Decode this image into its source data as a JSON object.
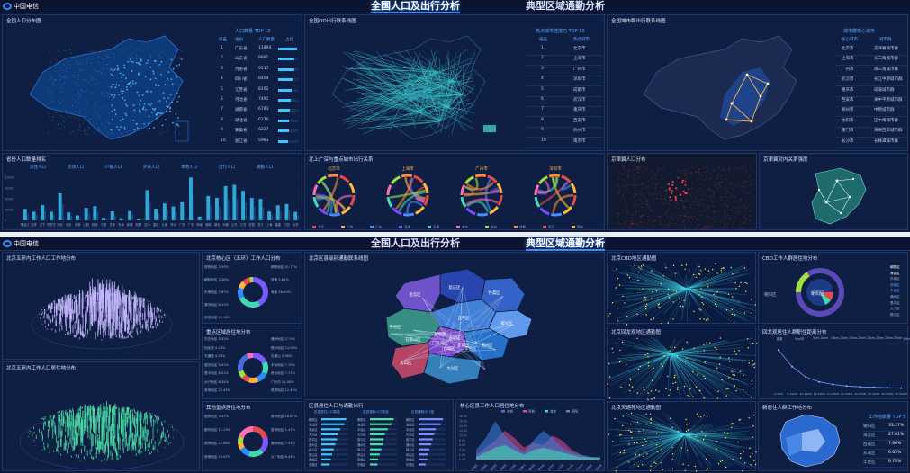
{
  "brand": {
    "logo_text": "中国电信"
  },
  "tabs": [
    {
      "label": "全国人口及出行分析",
      "active": true
    },
    {
      "label": "典型区域通勤分析",
      "active": false
    }
  ],
  "screen1": {
    "population_map": {
      "title": "全国人口分布图",
      "table_title": "人口数量 TOP 10",
      "headers": [
        "排名",
        "省份",
        "人口数量",
        "占比"
      ],
      "rows": [
        {
          "rank": "1",
          "name": "广东省",
          "value": "11894",
          "pct": 0.95
        },
        {
          "rank": "2",
          "name": "山东省",
          "value": "9881",
          "pct": 0.82
        },
        {
          "rank": "3",
          "name": "河南省",
          "value": "9517",
          "pct": 0.8
        },
        {
          "rank": "4",
          "name": "四川省",
          "value": "8404",
          "pct": 0.72
        },
        {
          "rank": "5",
          "name": "江苏省",
          "value": "8192",
          "pct": 0.7
        },
        {
          "rank": "6",
          "name": "河北省",
          "value": "7491",
          "pct": 0.64
        },
        {
          "rank": "7",
          "name": "湖南省",
          "value": "6783",
          "pct": 0.58
        },
        {
          "rank": "8",
          "name": "湖北省",
          "value": "6270",
          "pct": 0.54
        },
        {
          "rank": "9",
          "name": "安徽省",
          "value": "6227",
          "pct": 0.53
        },
        {
          "rank": "10",
          "name": "浙江省",
          "value": "5983",
          "pct": 0.51
        }
      ]
    },
    "od_map": {
      "title": "全国OD出行联系线图",
      "table_title": "热点城市连接力 TOP 10",
      "headers": [
        "排名",
        "热点城市"
      ],
      "rows": [
        {
          "rank": "1",
          "name": "北京市"
        },
        {
          "rank": "2",
          "name": "上海市"
        },
        {
          "rank": "3",
          "name": "广州市"
        },
        {
          "rank": "4",
          "name": "深圳市"
        },
        {
          "rank": "5",
          "name": "成都市"
        },
        {
          "rank": "6",
          "name": "武汉市"
        },
        {
          "rank": "7",
          "name": "重庆市"
        },
        {
          "rank": "8",
          "name": "西安市"
        },
        {
          "rank": "9",
          "name": "杭州市"
        },
        {
          "rank": "10",
          "name": "南京市"
        }
      ]
    },
    "city_group_map": {
      "title": "全国城市群出行联系线图",
      "table_title": "城市群核心城市",
      "headers": [
        "核心城市",
        "城市群"
      ],
      "rows": [
        {
          "core": "北京市",
          "group": "京津冀城市群"
        },
        {
          "core": "上海市",
          "group": "长三角城市群"
        },
        {
          "core": "广州市",
          "group": "珠三角城市群"
        },
        {
          "core": "武汉市",
          "group": "长江中游城市群"
        },
        {
          "core": "重庆市",
          "group": "成渝城市群"
        },
        {
          "core": "西安市",
          "group": "关中平原城市群"
        },
        {
          "core": "郑州市",
          "group": "中原城市群"
        },
        {
          "core": "沈阳市",
          "group": "辽中南城市群"
        },
        {
          "core": "厦门市",
          "group": "海峡西岸城市群"
        },
        {
          "core": "长沙市",
          "group": "长株潭城市群"
        }
      ]
    },
    "province_rank": {
      "title": "省份人口数量排名",
      "legend": [
        "常住人口",
        "流动人口",
        "户籍人口",
        "外来人口",
        "本地人口",
        "出行人口",
        "通勤人口"
      ],
      "axis_ticks": [
        "12000",
        "9000",
        "6000",
        "3000",
        "0"
      ],
      "categories": [
        "黑龙江",
        "吉林",
        "辽宁",
        "内蒙古",
        "河北",
        "北京",
        "天津",
        "山西",
        "陕西",
        "宁夏",
        "甘肃",
        "青海",
        "新疆",
        "西藏",
        "四川",
        "重庆",
        "云南",
        "贵州",
        "广西",
        "广东",
        "海南",
        "湖南",
        "湖北",
        "河南",
        "山东",
        "江苏",
        "安徽",
        "浙江",
        "上海",
        "福建",
        "江西",
        "台湾"
      ],
      "values": [
        3185,
        2407,
        4229,
        2405,
        7491,
        2189,
        1386,
        3480,
        3954,
        725,
        2490,
        594,
        2589,
        366,
        8404,
        3213,
        4690,
        3858,
        5027,
        11894,
        1020,
        6783,
        6270,
        9517,
        9881,
        8192,
        6227,
        5983,
        2487,
        4187,
        4519,
        2360
      ]
    },
    "chord": {
      "title": "北上广深与重点城市出行关系",
      "cities": [
        "北京市",
        "上海市",
        "广州市",
        "深圳市"
      ],
      "legend": [
        "北京",
        "上海",
        "广州",
        "深圳",
        "天津",
        "重庆",
        "杭州",
        "成都",
        "武汉",
        "西安"
      ]
    },
    "jjj_population": {
      "title": "京津冀人口分布"
    },
    "jjj_relations": {
      "title": "京津冀对内关系强度"
    }
  },
  "screen2": {
    "work_3d": {
      "title": "北京五环内工作人口工作地分布"
    },
    "live_3d": {
      "title": "北京五环内工作人口居住地分布"
    },
    "core_donut": {
      "title": "北京核心区（五环）工作人口分布",
      "left_labels": [
        "双桥地区 2.59%",
        "朝阳地区 3.28%",
        "东坝地区 7.67%",
        "清河地区 8.11%",
        "其他地区 11.98%"
      ],
      "right_labels": [
        "朝阳地区 41.77%",
        "其他 2.88%",
        "海淀 26.00%"
      ]
    },
    "key_donut": {
      "title": "重点区域居住地分布",
      "left_labels": [
        "亦庄地区 3.52%",
        "回龙观 4.13%",
        "天通苑 4.58%",
        "望京地区 5.41%",
        "昌平地区 6.01%",
        "大兴地区 6.54%",
        "其他地区 22.42%"
      ],
      "right_labels": [
        "通州地区 17.9%",
        "顺义地区 14.04%",
        "石景山 5.98%",
        "丰台地区 7.70%",
        "房山地区 7.71%",
        "门头沟 11.08%",
        "燕郊地区 12.45%"
      ]
    },
    "other_donut": {
      "title": "其他重点居住地分布",
      "left_labels": [
        "固安地区 3.47%",
        "廊坊地区 11.19%",
        "燕郊地区 17.84%",
        "其他地区 19.67%"
      ],
      "right_labels": [
        "涿州地区 16.87%",
        "香河地区 1.47%",
        "霸州地区 7.31%",
        "大厂地区 8.43%"
      ]
    },
    "district_map": {
      "title": "北京区县级别通勤联系线图",
      "districts": [
        "延庆区",
        "怀柔区",
        "密云区",
        "昌平区",
        "顺义区",
        "平谷区",
        "门头沟区",
        "海淀区",
        "朝阳区",
        "石景山区",
        "西城区",
        "东城区",
        "丰台区",
        "通州区",
        "房山区",
        "大兴区"
      ]
    },
    "district_bars": {
      "title": "区县居住人口与通勤出行",
      "col_headers": [
        "区县居住人口数量",
        "区县通勤人口数量",
        "区县通勤出行量"
      ],
      "districts": [
        "朝阳区",
        "海淀区",
        "丰台区",
        "大兴区",
        "昌平区",
        "通州区",
        "顺义区",
        "房山区",
        "西城区",
        "东城区"
      ],
      "values_a": [
        0.92,
        0.85,
        0.7,
        0.6,
        0.58,
        0.52,
        0.46,
        0.4,
        0.35,
        0.3
      ],
      "values_b": [
        0.88,
        0.8,
        0.66,
        0.55,
        0.5,
        0.48,
        0.42,
        0.36,
        0.3,
        0.28
      ],
      "values_c": [
        0.9,
        0.82,
        0.64,
        0.58,
        0.52,
        0.47,
        0.4,
        0.34,
        0.32,
        0.26
      ]
    },
    "core_area": {
      "title": "核心区县工作人口居住地分布",
      "legend": [
        "东城",
        "西城",
        "海淀",
        "朝阳"
      ],
      "y_ticks": [
        "18.00",
        "16.00",
        "14.00",
        "12.00",
        "10.00",
        "8.00",
        "6.00",
        "4.00",
        "2.00",
        "0.00"
      ],
      "x_labels": [
        "东城区",
        "西城区",
        "朝阳区",
        "海淀区",
        "丰台区",
        "石景山",
        "通州区",
        "顺义区",
        "昌平区",
        "大兴区",
        "房山区",
        "门头沟",
        "怀柔区",
        "平谷区"
      ],
      "series_a": [
        4,
        9,
        16,
        10,
        6,
        3,
        8,
        12,
        9,
        5,
        3,
        2,
        1,
        1
      ],
      "series_b": [
        2,
        5,
        8,
        12,
        9,
        5,
        7,
        6,
        10,
        8,
        4,
        2,
        1,
        1
      ],
      "series_c": [
        1,
        3,
        5,
        6,
        4,
        2,
        4,
        5,
        4,
        3,
        2,
        1,
        1,
        0.5
      ]
    },
    "cbd_map": {
      "title": "北京CBD地区通勤图"
    },
    "hlg_map": {
      "title": "北京回龙观地区通勤图"
    },
    "tt_map": {
      "title": "北京天通苑地区通勤图"
    },
    "cbd_pie": {
      "title": "CBD工作人群居住地分布",
      "center_label": "朝阳区",
      "side_label": "朝阳区",
      "legend": [
        "朝阳区",
        "海淀区",
        "东城区",
        "西城区",
        "丰台区",
        "通州区",
        "昌平区",
        "大兴区",
        "顺义区"
      ]
    },
    "hlg_curve": {
      "title": "回龙观居住人群职住距离分布",
      "legend": [
        "距离",
        "5km内",
        "5km-10km",
        "10km-15km",
        "15km-20km",
        "20km-25km",
        "25km-30km",
        "30km以上"
      ],
      "x_labels": [
        "0-5KM",
        "5-10KM",
        "10-15KM",
        "15-20KM",
        "20-25KM",
        "25-30KM",
        "30-35KM",
        "35-40KM",
        "40-45KM",
        "45-50KM"
      ],
      "values": [
        95,
        55,
        30,
        18,
        12,
        8,
        6,
        5,
        4,
        3
      ]
    },
    "new_jobs": {
      "title": "新居住人群工作地分布",
      "table_title": "工作地数量 TOP 5",
      "rows": [
        {
          "name": "朝阳区",
          "value": "33.27%"
        },
        {
          "name": "海淀区",
          "value": "27.81%"
        },
        {
          "name": "西城区",
          "value": "7.86%"
        },
        {
          "name": "东城区",
          "value": "6.65%"
        },
        {
          "name": "丰台区",
          "value": "6.78%"
        }
      ]
    }
  }
}
